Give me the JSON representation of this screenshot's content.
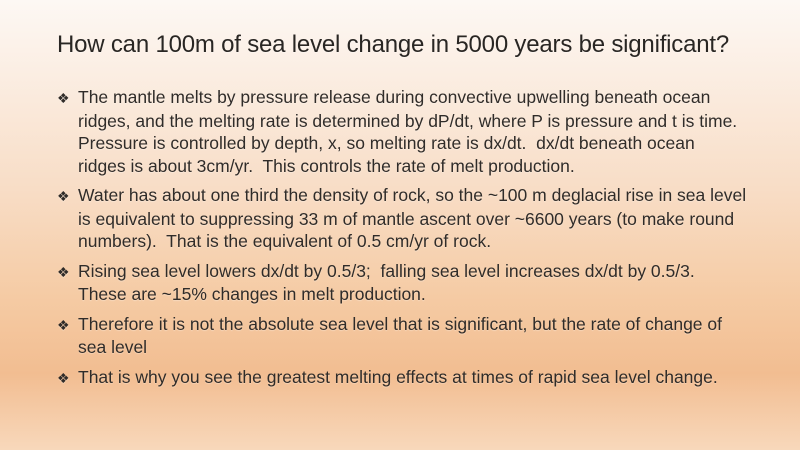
{
  "slide": {
    "title": "How can 100m of sea level change in 5000 years be significant?",
    "bullet_glyph": "❖",
    "bullets": [
      "The mantle melts by pressure release during convective upwelling beneath ocean ridges, and the melting rate is determined by dP/dt, where P is pressure and t is time.  Pressure is controlled by depth, x, so melting rate is dx/dt.  dx/dt beneath ocean ridges is about 3cm/yr.  This controls the rate of melt production.",
      "Water has about one third the density of rock, so the ~100 m deglacial rise in sea level is equivalent to suppressing 33 m of mantle ascent over ~6600 years (to make round numbers).  That is the equivalent of 0.5 cm/yr of rock.",
      "Rising sea level lowers dx/dt by 0.5/3;  falling sea level increases dx/dt by 0.5/3.  These are ~15% changes in melt production.",
      "Therefore it is not the absolute sea level that is significant, but the rate of change of sea level",
      "That is why you see the greatest melting effects at times of rapid sea level change."
    ],
    "colors": {
      "background_top": "#fdf8f4",
      "background_peak_orange": "#f2bd91",
      "background_bottom": "#f8d8bb",
      "text": "#302c29"
    }
  }
}
